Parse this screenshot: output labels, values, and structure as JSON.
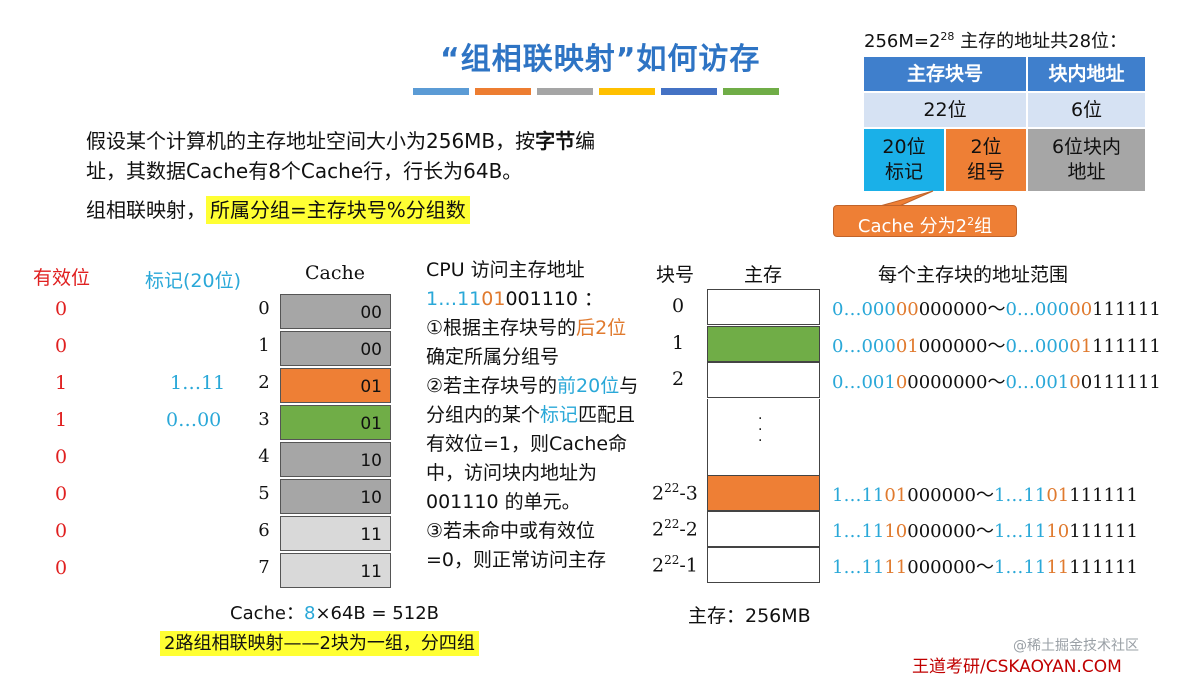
{
  "title": "“组相联映射”如何访存",
  "intro": {
    "line1_pre": "假设某个计算机的主存地址空间大小为256MB，按",
    "line1_bold": "字节",
    "line1_post": "编",
    "line2": "址，其数据Cache有8个Cache行，行长为64B。"
  },
  "rule": {
    "pre": "组相联映射，",
    "highlight": "所属分组=主存块号%分组数"
  },
  "address_table": {
    "caption_pre": "256M=2",
    "caption_sup": "28",
    "caption_post": " 主存的地址共28位：",
    "h1": "主存块号",
    "h2": "块内地址",
    "r1c1": "22位",
    "r1c2": "6位",
    "tag": "20位\n标记",
    "group": "2位\n组号",
    "offset": "6位块内\n地址",
    "colors": {
      "header": "#3f7fcc",
      "light": "#d6e2f3",
      "tag": "#1ab0e8",
      "group": "#ee7f35",
      "offset": "#a6a6a6"
    }
  },
  "callout": {
    "pre": "Cache 分为2",
    "sup": "2",
    "post": "组"
  },
  "cache": {
    "valid_header": "有效位",
    "tag_header": "标记(20位)",
    "cache_header": "Cache",
    "rows": [
      {
        "index": "0",
        "valid": "0",
        "tag": "",
        "group": "00",
        "color": "#a6a6a6"
      },
      {
        "index": "1",
        "valid": "0",
        "tag": "",
        "group": "00",
        "color": "#a6a6a6"
      },
      {
        "index": "2",
        "valid": "1",
        "tag": "1…11",
        "group": "01",
        "color": "#ee7f35"
      },
      {
        "index": "3",
        "valid": "1",
        "tag": "0…00",
        "group": "01",
        "color": "#70ad47"
      },
      {
        "index": "4",
        "valid": "0",
        "tag": "",
        "group": "10",
        "color": "#a6a6a6"
      },
      {
        "index": "5",
        "valid": "0",
        "tag": "",
        "group": "10",
        "color": "#a6a6a6"
      },
      {
        "index": "6",
        "valid": "0",
        "tag": "",
        "group": "11",
        "color": "#d9d9d9"
      },
      {
        "index": "7",
        "valid": "0",
        "tag": "",
        "group": "11",
        "color": "#d9d9d9"
      }
    ],
    "size_pre": "Cache：",
    "size_num": "8",
    "size_post": "×64B = 512B",
    "note": "2路组相联映射——2块为一组，分四组"
  },
  "steps": {
    "s0a": "CPU 访问主存地址",
    "s0b_blue1": "1…11",
    "s0b_orange": "01",
    "s0b_rest": "001110 ：",
    "s1a": "①根据主存块号的",
    "s1b": "后",
    "s1c": "2位",
    "s1d": "确定所属分组号",
    "s2a": "②若主存块号的",
    "s2b": "前20位",
    "s2c": "与分组内的某个",
    "s2d": "标记",
    "s2e": "匹配且有效位=1，则Cache命中，访问块内地址为 001110 的单元。",
    "s3": "③若未命中或有效位=0，则正常访问主存"
  },
  "memory": {
    "block_header": "块号",
    "mem_header": "主存",
    "range_header": "每个主存块的地址范围",
    "ellipsis": "·\n·\n·",
    "size_label": "主存：256MB",
    "rows": [
      {
        "label": "0",
        "sup": "",
        "suffix": "",
        "color": "#ffffff",
        "a_blue": "0…000",
        "a_orange": "00",
        "a_black": "000000",
        "tilde": "～",
        "b_blue": "0…000",
        "b_orange": "00",
        "b_black": "111111"
      },
      {
        "label": "1",
        "sup": "",
        "suffix": "",
        "color": "#70ad47",
        "a_blue": "0…000",
        "a_orange": "01",
        "a_black": "000000",
        "tilde": "～",
        "b_blue": "0…000",
        "b_orange": "01",
        "b_black": "111111"
      },
      {
        "label": "2",
        "sup": "",
        "suffix": "",
        "color": "#ffffff",
        "a_blue": "0…001",
        "a_orange": "0",
        "a_black": "0000000",
        "tilde": "～",
        "b_blue": "0…001",
        "b_orange": "0",
        "b_black": "0111111"
      },
      {
        "label": "2",
        "sup": "22",
        "suffix": "-3",
        "color": "#ee7f35",
        "a_blue": "1…11",
        "a_orange": "01",
        "a_black": "000000",
        "tilde": "～",
        "b_blue": "1…11",
        "b_orange": "01",
        "b_black": "111111"
      },
      {
        "label": "2",
        "sup": "22",
        "suffix": "-2",
        "color": "#ffffff",
        "a_blue": "1…11",
        "a_orange": "10",
        "a_black": "000000",
        "tilde": "～",
        "b_blue": "1…11",
        "b_orange": "10",
        "b_black": "111111"
      },
      {
        "label": "2",
        "sup": "22",
        "suffix": "-1",
        "color": "#ffffff",
        "a_blue": "1…11",
        "a_orange": "11",
        "a_black": "000000",
        "tilde": "～",
        "b_blue": "1…11",
        "b_orange": "11",
        "b_black": "111111"
      }
    ]
  },
  "footer": {
    "watermark": "@稀土掘金技术社区",
    "brand": "王道考研/CSKAOYAN.COM"
  },
  "title_bar_colors": [
    "#5b9bd5",
    "#ed7d31",
    "#a5a5a5",
    "#ffc000",
    "#4472c4",
    "#70ad47"
  ]
}
